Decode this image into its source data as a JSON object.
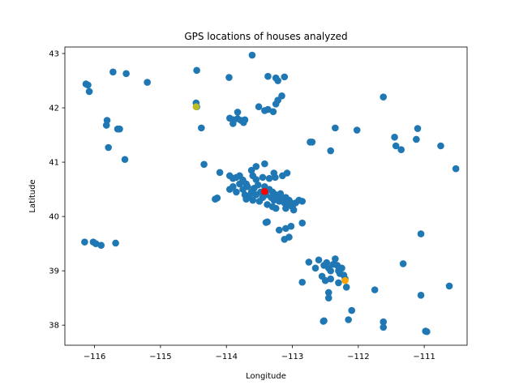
{
  "chart_data": {
    "type": "scatter",
    "title": "GPS locations of houses analyzed",
    "xlabel": "Longitude",
    "ylabel": "Latitude",
    "xlim": [
      -116.45,
      -110.35
    ],
    "ylim": [
      37.63,
      43.12
    ],
    "xticks": [
      -116,
      -115,
      -114,
      -113,
      -112,
      -111
    ],
    "xtick_labels": [
      "−116",
      "−115",
      "−114",
      "−113",
      "−112",
      "−111"
    ],
    "yticks": [
      38,
      39,
      40,
      41,
      42,
      43
    ],
    "ytick_labels": [
      "38",
      "39",
      "40",
      "41",
      "42",
      "43"
    ],
    "grid": false,
    "legend": "none",
    "colors": {
      "houses": "#1f77b4",
      "highlight_red": "#ff0000",
      "highlight_yellow": "#bcbd22",
      "highlight_orange": "#ffa500"
    },
    "series": [
      {
        "color": "#1f77b4",
        "points": [
          [
            -116.13,
            42.44
          ],
          [
            -116.1,
            42.42
          ],
          [
            -116.08,
            42.3
          ],
          [
            -115.72,
            42.66
          ],
          [
            -115.52,
            42.63
          ],
          [
            -115.2,
            42.47
          ],
          [
            -114.45,
            42.69
          ],
          [
            -114.46,
            42.09
          ],
          [
            -114.45,
            42.02
          ],
          [
            -114.38,
            41.63
          ],
          [
            -114.34,
            40.96
          ],
          [
            -114.1,
            40.81
          ],
          [
            -113.96,
            42.56
          ],
          [
            -113.61,
            42.97
          ],
          [
            -113.37,
            42.58
          ],
          [
            -113.25,
            42.55
          ],
          [
            -113.22,
            42.5
          ],
          [
            -113.12,
            42.57
          ],
          [
            -113.16,
            42.22
          ],
          [
            -113.22,
            42.14
          ],
          [
            -113.25,
            42.07
          ],
          [
            -113.29,
            41.93
          ],
          [
            -113.51,
            42.02
          ],
          [
            -113.42,
            41.95
          ],
          [
            -113.37,
            41.97
          ],
          [
            -113.83,
            41.92
          ],
          [
            -113.83,
            41.8
          ],
          [
            -113.89,
            41.78
          ],
          [
            -113.9,
            41.71
          ],
          [
            -113.78,
            41.77
          ],
          [
            -113.95,
            41.81
          ],
          [
            -113.72,
            41.78
          ],
          [
            -113.74,
            41.73
          ],
          [
            -115.82,
            41.68
          ],
          [
            -115.81,
            41.77
          ],
          [
            -115.65,
            41.61
          ],
          [
            -115.62,
            41.61
          ],
          [
            -115.79,
            41.27
          ],
          [
            -115.54,
            41.05
          ],
          [
            -116.15,
            39.53
          ],
          [
            -116.02,
            39.53
          ],
          [
            -115.98,
            39.5
          ],
          [
            -115.9,
            39.47
          ],
          [
            -115.68,
            39.51
          ],
          [
            -114.17,
            40.32
          ],
          [
            -114.14,
            40.34
          ],
          [
            -113.95,
            40.75
          ],
          [
            -113.9,
            40.7
          ],
          [
            -113.85,
            40.72
          ],
          [
            -113.8,
            40.75
          ],
          [
            -113.75,
            40.67
          ],
          [
            -113.7,
            40.6
          ],
          [
            -113.6,
            40.75
          ],
          [
            -113.55,
            40.68
          ],
          [
            -113.45,
            40.72
          ],
          [
            -113.35,
            40.7
          ],
          [
            -113.62,
            40.85
          ],
          [
            -113.55,
            40.92
          ],
          [
            -113.42,
            40.97
          ],
          [
            -113.28,
            40.8
          ],
          [
            -113.26,
            40.72
          ],
          [
            -113.15,
            40.75
          ],
          [
            -113.08,
            40.8
          ],
          [
            -113.95,
            40.5
          ],
          [
            -113.9,
            40.55
          ],
          [
            -113.85,
            40.45
          ],
          [
            -113.8,
            40.6
          ],
          [
            -113.75,
            40.5
          ],
          [
            -113.72,
            40.4
          ],
          [
            -113.68,
            40.55
          ],
          [
            -113.62,
            40.45
          ],
          [
            -113.58,
            40.52
          ],
          [
            -113.55,
            40.4
          ],
          [
            -113.52,
            40.58
          ],
          [
            -113.48,
            40.45
          ],
          [
            -113.45,
            40.35
          ],
          [
            -113.42,
            40.55
          ],
          [
            -113.4,
            40.4
          ],
          [
            -113.35,
            40.5
          ],
          [
            -113.32,
            40.35
          ],
          [
            -113.3,
            40.45
          ],
          [
            -113.28,
            40.3
          ],
          [
            -113.25,
            40.4
          ],
          [
            -113.22,
            40.35
          ],
          [
            -113.2,
            40.28
          ],
          [
            -113.18,
            40.42
          ],
          [
            -113.15,
            40.3
          ],
          [
            -113.12,
            40.25
          ],
          [
            -113.1,
            40.35
          ],
          [
            -113.08,
            40.22
          ],
          [
            -113.05,
            40.3
          ],
          [
            -113.02,
            40.25
          ],
          [
            -113.0,
            40.18
          ],
          [
            -112.95,
            40.25
          ],
          [
            -112.9,
            40.3
          ],
          [
            -113.6,
            40.3
          ],
          [
            -113.65,
            40.38
          ],
          [
            -113.7,
            40.32
          ],
          [
            -113.5,
            40.28
          ],
          [
            -113.38,
            40.22
          ],
          [
            -113.3,
            40.18
          ],
          [
            -112.98,
            40.12
          ],
          [
            -113.1,
            40.15
          ],
          [
            -113.25,
            40.15
          ],
          [
            -113.4,
            39.89
          ],
          [
            -113.38,
            39.9
          ],
          [
            -113.2,
            39.75
          ],
          [
            -113.1,
            39.78
          ],
          [
            -113.02,
            39.82
          ],
          [
            -113.05,
            39.62
          ],
          [
            -113.12,
            39.58
          ],
          [
            -112.85,
            39.88
          ],
          [
            -112.85,
            40.28
          ],
          [
            -112.73,
            41.37
          ],
          [
            -112.7,
            41.37
          ],
          [
            -112.75,
            39.16
          ],
          [
            -112.65,
            39.05
          ],
          [
            -112.6,
            39.2
          ],
          [
            -112.52,
            39.1
          ],
          [
            -112.48,
            39.15
          ],
          [
            -112.45,
            39.05
          ],
          [
            -112.42,
            39.0
          ],
          [
            -112.38,
            39.12
          ],
          [
            -112.35,
            39.22
          ],
          [
            -112.32,
            39.1
          ],
          [
            -112.3,
            39.0
          ],
          [
            -112.28,
            38.95
          ],
          [
            -112.25,
            39.05
          ],
          [
            -112.22,
            38.92
          ],
          [
            -112.2,
            38.85
          ],
          [
            -112.3,
            38.78
          ],
          [
            -112.42,
            38.85
          ],
          [
            -112.5,
            38.82
          ],
          [
            -112.55,
            38.9
          ],
          [
            -112.45,
            38.6
          ],
          [
            -112.45,
            38.5
          ],
          [
            -112.18,
            38.7
          ],
          [
            -112.85,
            38.79
          ],
          [
            -112.53,
            38.07
          ],
          [
            -112.52,
            38.08
          ],
          [
            -112.15,
            38.1
          ],
          [
            -112.1,
            38.27
          ],
          [
            -112.35,
            41.63
          ],
          [
            -112.42,
            41.21
          ],
          [
            -112.02,
            41.59
          ],
          [
            -111.62,
            42.2
          ],
          [
            -111.45,
            41.46
          ],
          [
            -111.43,
            41.3
          ],
          [
            -111.35,
            41.23
          ],
          [
            -111.12,
            41.42
          ],
          [
            -111.1,
            41.62
          ],
          [
            -110.75,
            41.3
          ],
          [
            -110.52,
            40.88
          ],
          [
            -111.75,
            38.65
          ],
          [
            -111.62,
            38.06
          ],
          [
            -111.62,
            37.96
          ],
          [
            -111.32,
            39.13
          ],
          [
            -111.05,
            39.68
          ],
          [
            -111.05,
            38.55
          ],
          [
            -110.98,
            37.89
          ],
          [
            -110.96,
            37.88
          ],
          [
            -110.62,
            38.72
          ]
        ]
      },
      {
        "color": "#ff0000",
        "points": [
          [
            -113.42,
            40.46
          ]
        ]
      },
      {
        "color": "#bcbd22",
        "points": [
          [
            -114.46,
            42.02
          ]
        ]
      },
      {
        "color": "#ffa500",
        "points": [
          [
            -112.2,
            38.82
          ]
        ]
      }
    ]
  }
}
